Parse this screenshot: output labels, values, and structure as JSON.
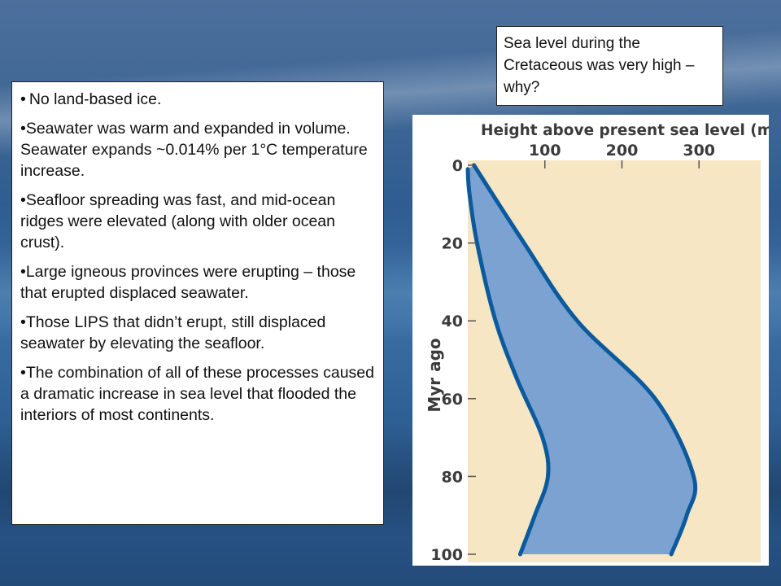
{
  "bullets": [
    {
      "mark": "•",
      "text": "No land-based ice."
    },
    {
      "mark": "•",
      "text": "Seawater was warm and expanded in volume.  Seawater expands ~0.014% per 1°C temperature increase."
    },
    {
      "mark": "•",
      "text": "Seafloor spreading was fast, and mid-ocean ridges were elevated (along with older ocean crust)."
    },
    {
      "mark": "•",
      "text": "Large igneous provinces were erupting – those that erupted displaced seawater."
    },
    {
      "mark": "•",
      "text": "Those LIPS that didn’t erupt, still displaced seawater by elevating the seafloor."
    },
    {
      "mark": "•",
      "text": "The combination of all of these processes caused a dramatic increase in sea level that flooded the interiors of most continents."
    }
  ],
  "caption": "Sea level during the Cretaceous was very high – why?",
  "chart_data": {
    "type": "area",
    "title": "Height above present sea level (m)",
    "xlabel": "Height above present sea level (m)",
    "ylabel": "Myr ago",
    "xlim": [
      0,
      380
    ],
    "ylim": [
      0,
      100
    ],
    "x_ticks": [
      100,
      200,
      300
    ],
    "y_ticks": [
      0,
      20,
      40,
      60,
      80,
      100
    ],
    "series": [
      {
        "points": [
          [
            0,
            1
          ],
          [
            2,
            7
          ],
          [
            12,
            20
          ],
          [
            36,
            40
          ],
          [
            64,
            55
          ],
          [
            97,
            70
          ],
          [
            104,
            80
          ],
          [
            87,
            90
          ],
          [
            68,
            100
          ]
        ]
      },
      {
        "points": [
          [
            8,
            0
          ],
          [
            73,
            20
          ],
          [
            142,
            40
          ],
          [
            243,
            60
          ],
          [
            293,
            80
          ],
          [
            284,
            90
          ],
          [
            264,
            100
          ]
        ]
      }
    ],
    "fill_color": "#7ba2d0",
    "line_color": "#0c5a9e",
    "background_color": "#f6e6c3",
    "grid": false
  }
}
